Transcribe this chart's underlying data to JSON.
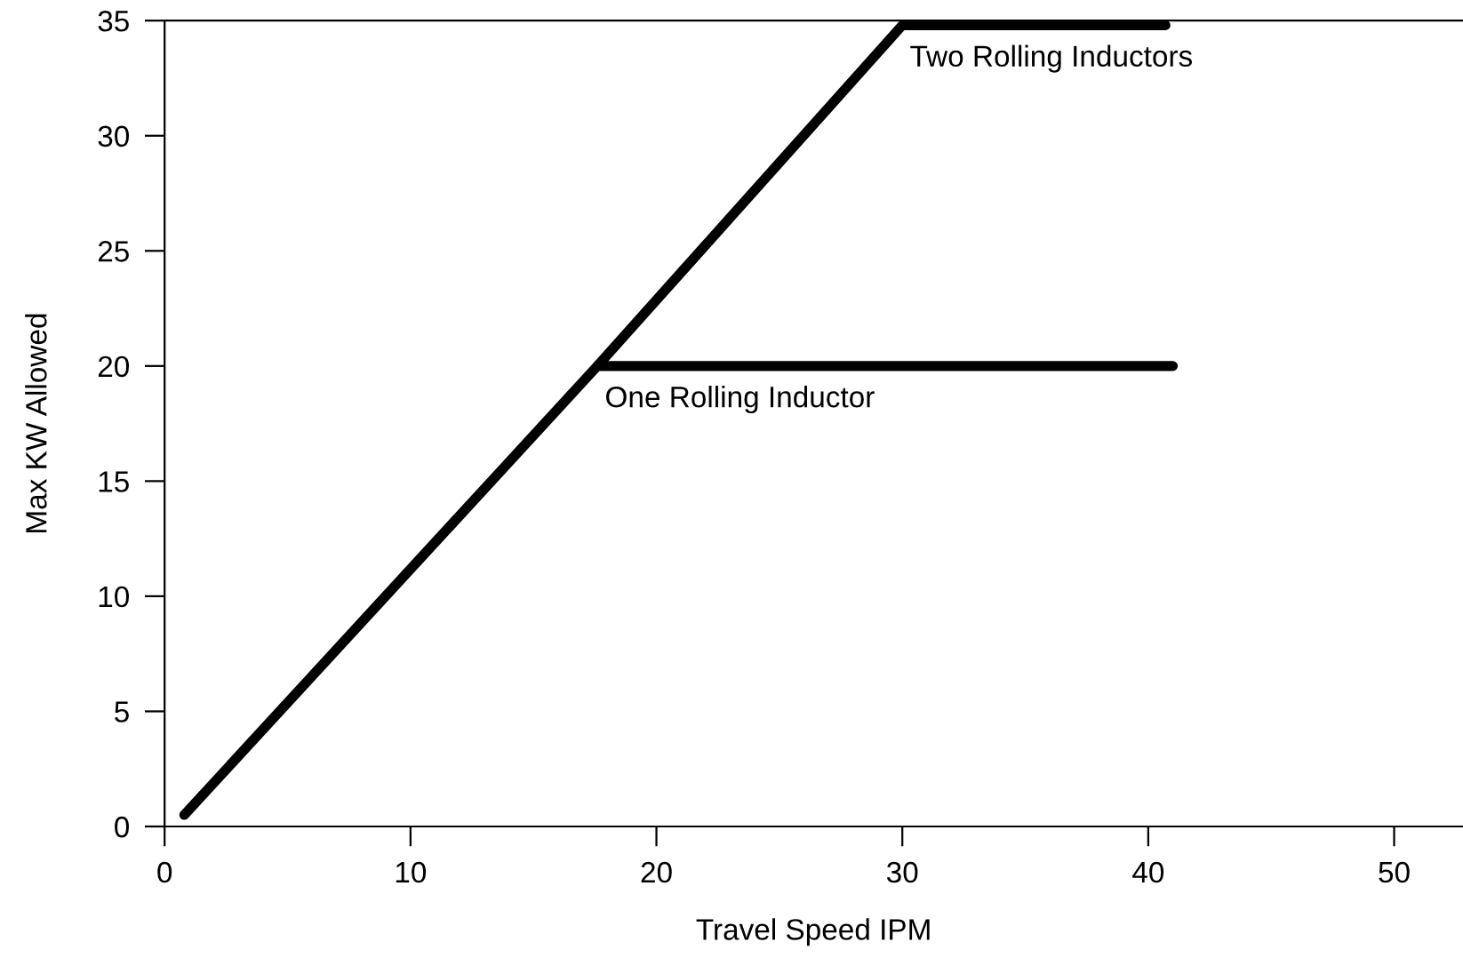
{
  "chart_data": {
    "type": "line",
    "xlabel": "Travel Speed IPM",
    "ylabel": "Max KW Allowed",
    "xlim": [
      0,
      52.8
    ],
    "xticks": [
      0,
      10,
      20,
      30,
      40,
      50
    ],
    "ylim": [
      0,
      35
    ],
    "yticks": [
      0,
      5,
      10,
      15,
      20,
      25,
      30,
      35
    ],
    "grid": false,
    "legend": false,
    "marker": "none",
    "line_style": "solid",
    "series": [
      {
        "name": "Two Rolling Inductors",
        "color": "#000000",
        "x": [
          0.8,
          17.6,
          30,
          40.7
        ],
        "values": [
          0.5,
          20,
          34.8,
          34.8
        ]
      },
      {
        "name": "One Rolling Inductor",
        "color": "#000000",
        "x": [
          17.6,
          41
        ],
        "values": [
          20,
          20
        ]
      }
    ]
  }
}
